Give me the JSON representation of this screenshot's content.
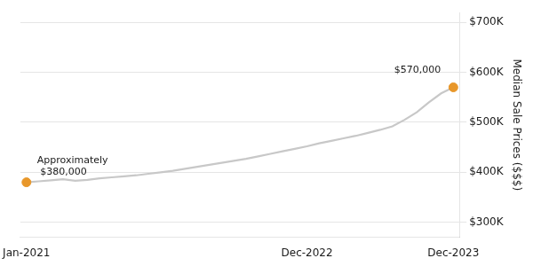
{
  "chart_data": {
    "type": "line",
    "y_label": "Median Sale Prices ($$$)",
    "categories": [
      "Jan-2021",
      null,
      null,
      null,
      null,
      null,
      null,
      null,
      null,
      null,
      null,
      null,
      null,
      null,
      null,
      null,
      null,
      null,
      null,
      null,
      null,
      null,
      null,
      "Dec-2022",
      null,
      null,
      null,
      null,
      null,
      null,
      null,
      null,
      null,
      null,
      null,
      "Dec-2023"
    ],
    "series": [
      {
        "color": "#c8c8c8",
        "values": [
          380000,
          382000,
          384000,
          386000,
          383000,
          385000,
          388000,
          390000,
          392000,
          394000,
          397000,
          400000,
          403000,
          407000,
          411000,
          415000,
          419000,
          423000,
          427000,
          432000,
          437000,
          442000,
          447000,
          452000,
          458000,
          463000,
          468000,
          473000,
          479000,
          485000,
          492000,
          505000,
          520000,
          540000,
          558000,
          570000
        ]
      },
      {
        "type": "scatter",
        "marker": "circle",
        "color": "#E8972A",
        "values": [
          380000,
          null,
          null,
          null,
          null,
          null,
          null,
          null,
          null,
          null,
          null,
          null,
          null,
          null,
          null,
          null,
          null,
          null,
          null,
          null,
          null,
          null,
          null,
          null,
          null,
          null,
          null,
          null,
          null,
          null,
          null,
          null,
          null,
          null,
          null,
          570000
        ]
      }
    ],
    "annotations": [
      {
        "text": [
          "Approximately",
          " $380,000"
        ],
        "value": 380000
      },
      {
        "text": "$570,000",
        "value": 570000
      }
    ],
    "ylim": [
      270000,
      720000
    ],
    "yticks": [
      {
        "value": 300000,
        "label": "$300K"
      },
      {
        "value": 400000,
        "label": "$400K"
      },
      {
        "value": 500000,
        "label": "$500K"
      },
      {
        "value": 600000,
        "label": "$600K"
      },
      {
        "value": 700000,
        "label": "$700K"
      }
    ],
    "grid": true
  }
}
